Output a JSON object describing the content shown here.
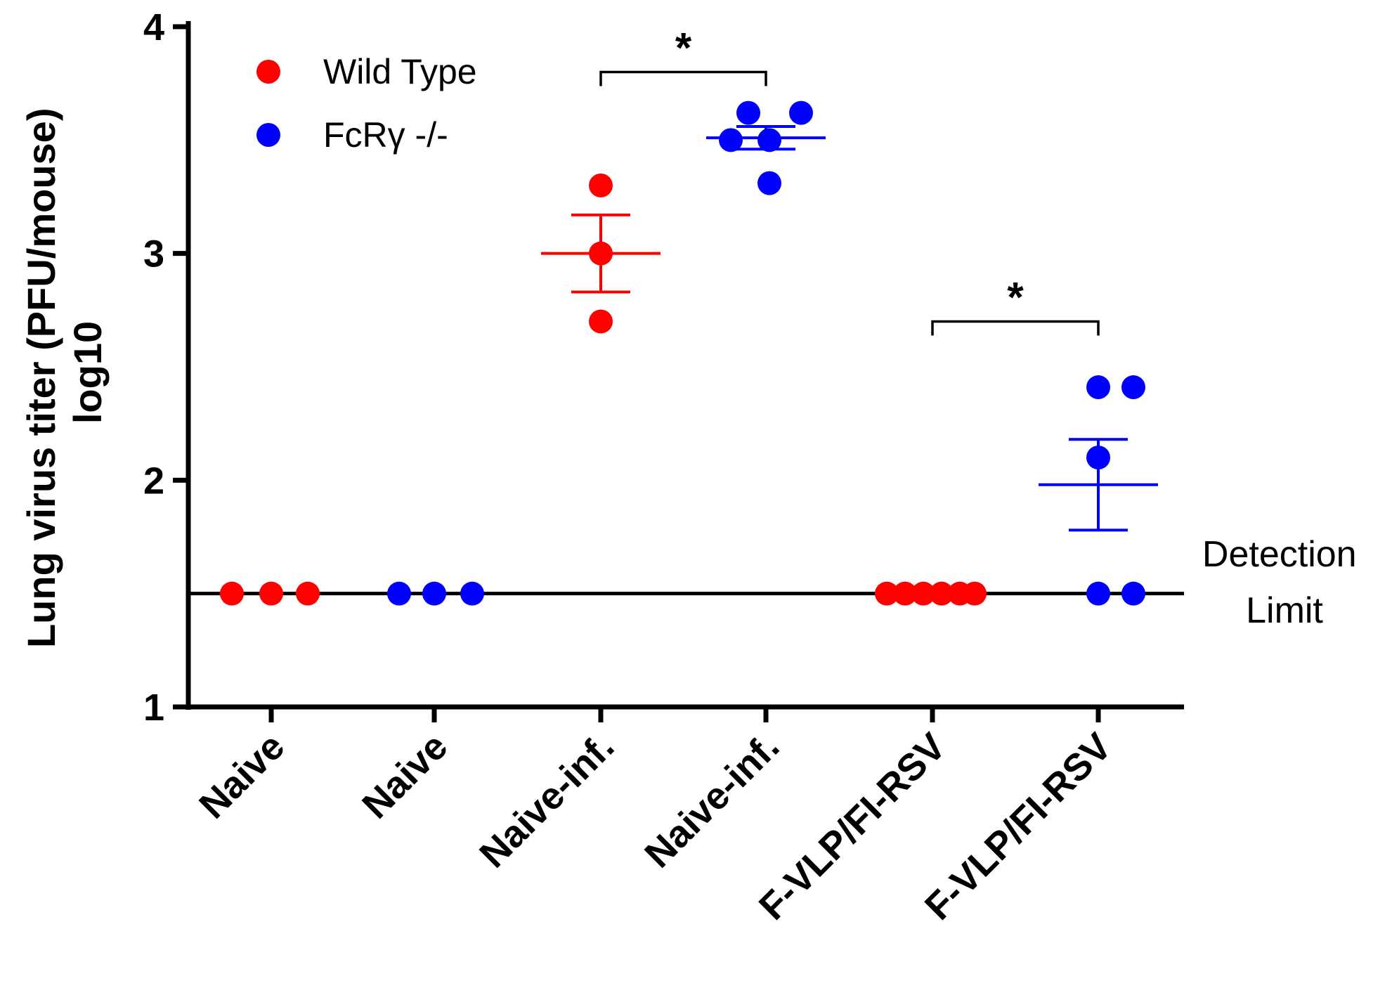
{
  "chart_data": {
    "type": "scatter",
    "title": "",
    "xlabel": "",
    "ylabel_line1": "Lung virus titer (PFU/mouse)",
    "ylabel_line2": "log10",
    "ylim": [
      1,
      4
    ],
    "yticks": [
      "1",
      "2",
      "3",
      "4"
    ],
    "categories": [
      "Naive",
      "Naive",
      "Naive-inf.",
      "Naive-inf.",
      "F-VLP/FI-RSV",
      "F-VLP/FI-RSV"
    ],
    "colors": {
      "wild_type": "#ff0000",
      "fcr": "#0000ff",
      "axis": "#000000"
    },
    "legend": [
      {
        "label": "Wild Type",
        "color": "#ff0000"
      },
      {
        "label": "FcRγ -/-",
        "color": "#0000ff"
      }
    ],
    "detection_limit": {
      "value": 1.5,
      "label_line1": "Detection",
      "label_line2": "Limit"
    },
    "groups": [
      {
        "category": "Naive",
        "series": "Wild Type",
        "color": "#ff0000",
        "points": [
          1.5,
          1.5,
          1.5
        ],
        "mean": null,
        "sem": null
      },
      {
        "category": "Naive",
        "series": "FcRγ -/-",
        "color": "#0000ff",
        "points": [
          1.5,
          1.5,
          1.5
        ],
        "mean": null,
        "sem": null
      },
      {
        "category": "Naive-inf.",
        "series": "Wild Type",
        "color": "#ff0000",
        "points": [
          3.3,
          3.0,
          2.7
        ],
        "mean": 3.0,
        "sem": 0.17
      },
      {
        "category": "Naive-inf.",
        "series": "FcRγ -/-",
        "color": "#0000ff",
        "points": [
          3.62,
          3.62,
          3.5,
          3.5,
          3.31
        ],
        "mean": 3.51,
        "sem": 0.05
      },
      {
        "category": "F-VLP/FI-RSV",
        "series": "Wild Type",
        "color": "#ff0000",
        "points": [
          1.5,
          1.5,
          1.5,
          1.5,
          1.5,
          1.5
        ],
        "mean": null,
        "sem": null
      },
      {
        "category": "F-VLP/FI-RSV",
        "series": "FcRγ -/-",
        "color": "#0000ff",
        "points": [
          2.41,
          2.41,
          2.1,
          1.5,
          1.5
        ],
        "mean": 1.98,
        "sem": 0.2
      }
    ],
    "significance": [
      {
        "from": 2,
        "to": 3,
        "level": 3.8,
        "label": "*"
      },
      {
        "from": 4,
        "to": 5,
        "level": 2.7,
        "label": "*"
      }
    ]
  }
}
